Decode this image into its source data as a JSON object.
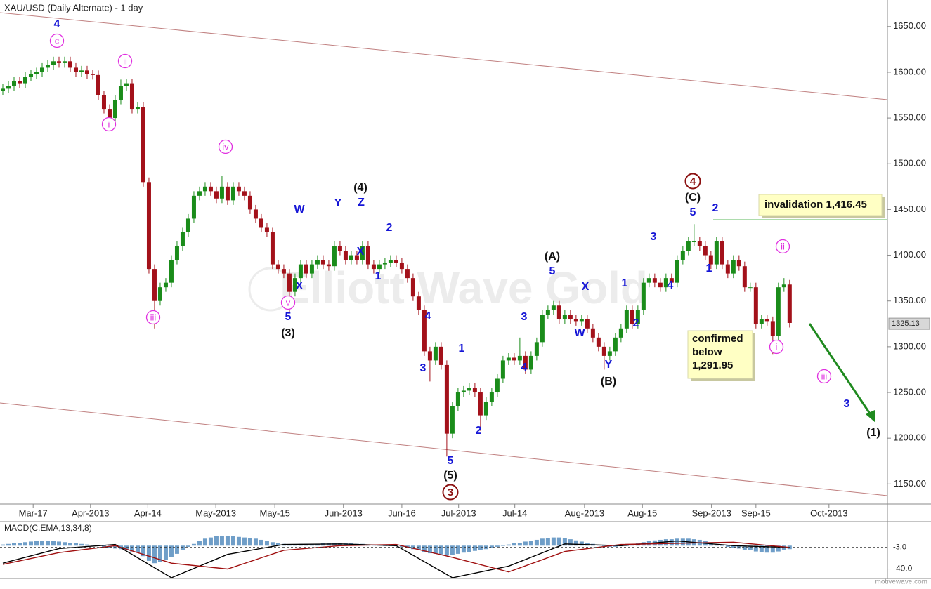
{
  "chart_data": {
    "type": "candlestick",
    "title": "XAU/USD (Daily Alternate) - 1 day",
    "up_color": "#1a8c1a",
    "down_color": "#a3111a",
    "open": [
      1580,
      1582,
      1585,
      1590,
      1588,
      1595,
      1598,
      1600,
      1605,
      1608,
      1612,
      1610,
      1612,
      1605,
      1600,
      1602,
      1598,
      1597,
      1575,
      1560,
      1550,
      1570,
      1585,
      1588,
      1560,
      1562,
      1480,
      1385,
      1350,
      1365,
      1370,
      1395,
      1410,
      1425,
      1440,
      1465,
      1470,
      1475,
      1470,
      1462,
      1475,
      1460,
      1475,
      1470,
      1465,
      1450,
      1440,
      1430,
      1425,
      1390,
      1385,
      1380,
      1360,
      1375,
      1390,
      1380,
      1390,
      1395,
      1390,
      1388,
      1410,
      1405,
      1395,
      1400,
      1395,
      1410,
      1390,
      1385,
      1390,
      1392,
      1395,
      1392,
      1385,
      1375,
      1355,
      1340,
      1295,
      1285,
      1300,
      1280,
      1205,
      1235,
      1250,
      1252,
      1255,
      1250,
      1225,
      1240,
      1250,
      1265,
      1285,
      1288,
      1285,
      1290,
      1275,
      1290,
      1305,
      1335,
      1340,
      1345,
      1330,
      1335,
      1330,
      1328,
      1330,
      1320,
      1310,
      1300,
      1290,
      1295,
      1310,
      1320,
      1340,
      1325,
      1340,
      1370,
      1375,
      1370,
      1365,
      1375,
      1370,
      1395,
      1405,
      1415,
      1415,
      1410,
      1400,
      1390,
      1415,
      1390,
      1380,
      1395,
      1388,
      1365,
      1365,
      1325,
      1330,
      1328,
      1312,
      1365,
      1368
    ],
    "high": [
      1587,
      1590,
      1595,
      1595,
      1600,
      1603,
      1605,
      1610,
      1613,
      1617,
      1617,
      1617,
      1617,
      1610,
      1607,
      1607,
      1603,
      1602,
      1580,
      1565,
      1575,
      1592,
      1593,
      1593,
      1567,
      1567,
      1485,
      1390,
      1370,
      1375,
      1400,
      1415,
      1430,
      1445,
      1470,
      1475,
      1480,
      1480,
      1475,
      1487,
      1480,
      1480,
      1480,
      1475,
      1470,
      1455,
      1445,
      1435,
      1430,
      1395,
      1390,
      1385,
      1380,
      1395,
      1395,
      1395,
      1400,
      1400,
      1395,
      1415,
      1415,
      1410,
      1405,
      1405,
      1415,
      1415,
      1395,
      1395,
      1397,
      1400,
      1400,
      1397,
      1390,
      1380,
      1360,
      1345,
      1300,
      1305,
      1305,
      1285,
      1240,
      1255,
      1257,
      1260,
      1260,
      1255,
      1245,
      1255,
      1270,
      1290,
      1293,
      1293,
      1310,
      1295,
      1295,
      1310,
      1340,
      1345,
      1350,
      1350,
      1340,
      1340,
      1335,
      1335,
      1335,
      1325,
      1315,
      1305,
      1300,
      1315,
      1325,
      1345,
      1345,
      1345,
      1375,
      1380,
      1380,
      1375,
      1380,
      1380,
      1400,
      1410,
      1420,
      1434,
      1420,
      1415,
      1405,
      1420,
      1420,
      1395,
      1400,
      1400,
      1393,
      1370,
      1370,
      1335,
      1335,
      1333,
      1370,
      1375,
      1373
    ],
    "low": [
      1575,
      1577,
      1580,
      1583,
      1583,
      1590,
      1593,
      1595,
      1600,
      1603,
      1605,
      1605,
      1600,
      1595,
      1595,
      1593,
      1592,
      1570,
      1555,
      1540,
      1545,
      1565,
      1580,
      1555,
      1555,
      1475,
      1380,
      1320,
      1345,
      1360,
      1365,
      1390,
      1405,
      1420,
      1435,
      1460,
      1465,
      1465,
      1457,
      1457,
      1455,
      1455,
      1465,
      1460,
      1445,
      1435,
      1425,
      1420,
      1385,
      1380,
      1375,
      1338,
      1355,
      1370,
      1375,
      1375,
      1385,
      1385,
      1383,
      1383,
      1400,
      1390,
      1390,
      1390,
      1390,
      1385,
      1380,
      1380,
      1385,
      1387,
      1387,
      1380,
      1370,
      1350,
      1335,
      1290,
      1262,
      1280,
      1275,
      1180,
      1200,
      1230,
      1245,
      1247,
      1245,
      1208,
      1220,
      1235,
      1245,
      1260,
      1280,
      1280,
      1280,
      1270,
      1270,
      1285,
      1300,
      1330,
      1335,
      1325,
      1325,
      1325,
      1323,
      1323,
      1315,
      1305,
      1295,
      1275,
      1285,
      1290,
      1305,
      1315,
      1320,
      1320,
      1335,
      1365,
      1365,
      1360,
      1360,
      1365,
      1365,
      1390,
      1400,
      1410,
      1405,
      1395,
      1385,
      1385,
      1385,
      1375,
      1375,
      1383,
      1360,
      1360,
      1320,
      1320,
      1323,
      1292,
      1307,
      1360,
      1321
    ],
    "close": [
      1582,
      1585,
      1590,
      1588,
      1595,
      1598,
      1600,
      1605,
      1608,
      1612,
      1610,
      1612,
      1605,
      1600,
      1602,
      1598,
      1597,
      1575,
      1560,
      1550,
      1570,
      1585,
      1588,
      1560,
      1562,
      1480,
      1385,
      1350,
      1365,
      1370,
      1395,
      1410,
      1425,
      1440,
      1465,
      1470,
      1475,
      1470,
      1462,
      1475,
      1460,
      1475,
      1470,
      1465,
      1450,
      1440,
      1430,
      1425,
      1390,
      1385,
      1380,
      1360,
      1375,
      1390,
      1380,
      1390,
      1395,
      1390,
      1388,
      1410,
      1405,
      1395,
      1400,
      1395,
      1410,
      1390,
      1385,
      1390,
      1392,
      1395,
      1392,
      1385,
      1375,
      1355,
      1340,
      1295,
      1285,
      1300,
      1280,
      1205,
      1235,
      1250,
      1252,
      1255,
      1250,
      1225,
      1240,
      1250,
      1265,
      1285,
      1288,
      1285,
      1290,
      1275,
      1290,
      1305,
      1335,
      1340,
      1345,
      1330,
      1335,
      1330,
      1328,
      1330,
      1320,
      1310,
      1300,
      1290,
      1295,
      1310,
      1320,
      1340,
      1325,
      1340,
      1370,
      1375,
      1370,
      1365,
      1375,
      1370,
      1395,
      1405,
      1415,
      1415,
      1410,
      1400,
      1390,
      1415,
      1390,
      1380,
      1395,
      1388,
      1365,
      1365,
      1325,
      1330,
      1328,
      1312,
      1365,
      1368,
      1326
    ],
    "xlim": [
      -0.5,
      157.4
    ],
    "xticks": [
      {
        "value": 5.4,
        "label": "Mar-17"
      },
      {
        "value": 15.6,
        "label": "Apr-2013"
      },
      {
        "value": 25.8,
        "label": "Apr-14"
      },
      {
        "value": 37.9,
        "label": "May-2013"
      },
      {
        "value": 48.4,
        "label": "May-15"
      },
      {
        "value": 60.6,
        "label": "Jun-2013"
      },
      {
        "value": 71,
        "label": "Jun-16"
      },
      {
        "value": 81.1,
        "label": "Jul-2013"
      },
      {
        "value": 91.1,
        "label": "Jul-14"
      },
      {
        "value": 103.5,
        "label": "Aug-2013"
      },
      {
        "value": 113.8,
        "label": "Aug-15"
      },
      {
        "value": 126.1,
        "label": "Sep-2013"
      },
      {
        "value": 134,
        "label": "Sep-15"
      },
      {
        "value": 147,
        "label": "Oct-2013"
      }
    ],
    "ylim": [
      1128,
      1679
    ],
    "yticks": [
      {
        "value": 1150,
        "label": "1150.00"
      },
      {
        "value": 1200,
        "label": "1200.00"
      },
      {
        "value": 1250,
        "label": "1250.00"
      },
      {
        "value": 1300,
        "label": "1300.00"
      },
      {
        "value": 1350,
        "label": "1350.00"
      },
      {
        "value": 1400,
        "label": "1400.00"
      },
      {
        "value": 1450,
        "label": "1450.00"
      },
      {
        "value": 1500,
        "label": "1500.00"
      },
      {
        "value": 1550,
        "label": "1550.00"
      },
      {
        "value": 1600,
        "label": "1600.00"
      },
      {
        "value": 1650,
        "label": "1650.00"
      }
    ],
    "last_price": 1325.13,
    "wave_labels": [
      "4",
      "c",
      "ii",
      "i",
      "iii",
      "iv",
      "v",
      "5",
      "(3)",
      "W",
      "X",
      "Y",
      "(4)",
      "Z",
      "X",
      "2",
      "1",
      "4",
      "3",
      "1",
      "5",
      "(5)",
      "3",
      "2",
      "4",
      "3",
      "5",
      "(A)",
      "X",
      "W",
      "Y",
      "(B)",
      "1",
      "2",
      "3",
      "4",
      "5",
      "(C)",
      "4",
      "2",
      "1",
      "ii",
      "i",
      "iii",
      "3",
      "(1)"
    ],
    "invalidation_note": "invalidation 1,416.45",
    "confirmed_note": [
      "confirmed",
      "below",
      "1,291.95"
    ],
    "watermark": "Elliott Wave Gold",
    "footer": "motivewave.com",
    "macd": {
      "title": "MACD(C,EMA,13,34,8)",
      "ylim": [
        -55,
        40
      ],
      "yticks": [
        {
          "value": -40,
          "label": "-40.0"
        }
      ],
      "current": {
        "value": -3,
        "label": "-3.0"
      },
      "histogram_color": "#6f9ec8",
      "histogram": [
        2,
        3,
        4,
        5,
        6,
        7,
        8,
        8,
        8,
        8,
        7,
        6,
        5,
        4,
        3,
        2,
        1,
        0,
        -2,
        -4,
        -5,
        -6,
        -8,
        -10,
        -12,
        -18,
        -26,
        -30,
        -28,
        -24,
        -20,
        -14,
        -8,
        -2,
        3,
        8,
        12,
        14,
        16,
        17,
        17,
        16,
        15,
        14,
        13,
        12,
        10,
        8,
        6,
        4,
        3,
        2,
        2,
        3,
        3,
        2,
        3,
        4,
        4,
        5,
        5,
        4,
        4,
        3,
        3,
        2,
        1,
        1,
        0,
        0,
        -1,
        -2,
        -4,
        -6,
        -8,
        -11,
        -13,
        -14,
        -15,
        -17,
        -16,
        -14,
        -12,
        -11,
        -9,
        -8,
        -6,
        -4,
        -2,
        0,
        2,
        4,
        5,
        7,
        8,
        10,
        12,
        13,
        14,
        14,
        13,
        11,
        9,
        7,
        5,
        3,
        1,
        -1,
        -2,
        -2,
        -1,
        0,
        2,
        4,
        6,
        8,
        9,
        10,
        11,
        11,
        12,
        12,
        12,
        11,
        10,
        8,
        5,
        2,
        0,
        -2,
        -4,
        -5,
        -7,
        -8,
        -10,
        -11,
        -12,
        -12,
        -10,
        -8,
        -6
      ],
      "x": [
        0,
        10,
        20,
        30,
        40,
        50,
        60,
        70,
        80,
        90,
        100,
        110,
        120,
        130,
        140
      ],
      "series": [
        {
          "color": "#000000",
          "values": [
            -30,
            -5,
            2,
            -55,
            -15,
            2,
            3,
            0,
            -55,
            -35,
            3,
            0,
            8,
            0,
            -3
          ]
        },
        {
          "color": "#a01010",
          "values": [
            -32,
            -12,
            0,
            -30,
            -40,
            -8,
            0,
            2,
            -20,
            -45,
            -10,
            2,
            4,
            6,
            -3
          ]
        }
      ]
    }
  }
}
